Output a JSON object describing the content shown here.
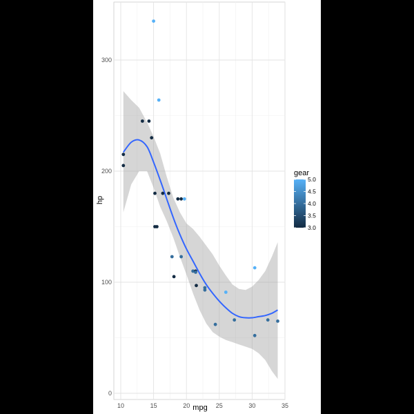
{
  "chart_data": {
    "type": "scatter",
    "title": "",
    "xlabel": "mpg",
    "ylabel": "hp",
    "xlim": [
      10.4,
      33.9
    ],
    "ylim": [
      0,
      340
    ],
    "x_ticks": [
      10,
      15,
      20,
      25,
      30,
      35
    ],
    "y_ticks": [
      0,
      100,
      200,
      300
    ],
    "grid": true,
    "legend": {
      "title": "gear",
      "placement": "right",
      "type": "colorbar",
      "range": [
        3,
        5
      ],
      "ticks": [
        "3.0",
        "3.5",
        "4.0",
        "4.5",
        "5.0"
      ],
      "colors": [
        "#132B43",
        "#56B1F7"
      ]
    },
    "points": [
      {
        "x": 21.0,
        "y": 110,
        "gear": 4
      },
      {
        "x": 21.0,
        "y": 110,
        "gear": 4
      },
      {
        "x": 22.8,
        "y": 93,
        "gear": 4
      },
      {
        "x": 21.4,
        "y": 110,
        "gear": 3
      },
      {
        "x": 18.7,
        "y": 175,
        "gear": 3
      },
      {
        "x": 18.1,
        "y": 105,
        "gear": 3
      },
      {
        "x": 14.3,
        "y": 245,
        "gear": 3
      },
      {
        "x": 24.4,
        "y": 62,
        "gear": 4
      },
      {
        "x": 22.8,
        "y": 95,
        "gear": 4
      },
      {
        "x": 19.2,
        "y": 123,
        "gear": 4
      },
      {
        "x": 17.8,
        "y": 123,
        "gear": 4
      },
      {
        "x": 16.4,
        "y": 180,
        "gear": 3
      },
      {
        "x": 17.3,
        "y": 180,
        "gear": 3
      },
      {
        "x": 15.2,
        "y": 180,
        "gear": 3
      },
      {
        "x": 10.4,
        "y": 205,
        "gear": 3
      },
      {
        "x": 10.4,
        "y": 215,
        "gear": 3
      },
      {
        "x": 14.7,
        "y": 230,
        "gear": 3
      },
      {
        "x": 32.4,
        "y": 66,
        "gear": 4
      },
      {
        "x": 30.4,
        "y": 52,
        "gear": 4
      },
      {
        "x": 33.9,
        "y": 65,
        "gear": 4
      },
      {
        "x": 21.5,
        "y": 97,
        "gear": 3
      },
      {
        "x": 15.5,
        "y": 150,
        "gear": 3
      },
      {
        "x": 15.2,
        "y": 150,
        "gear": 3
      },
      {
        "x": 13.3,
        "y": 245,
        "gear": 3
      },
      {
        "x": 19.2,
        "y": 175,
        "gear": 3
      },
      {
        "x": 27.3,
        "y": 66,
        "gear": 4
      },
      {
        "x": 26.0,
        "y": 91,
        "gear": 5
      },
      {
        "x": 30.4,
        "y": 113,
        "gear": 5
      },
      {
        "x": 15.8,
        "y": 264,
        "gear": 5
      },
      {
        "x": 19.7,
        "y": 175,
        "gear": 5
      },
      {
        "x": 15.0,
        "y": 335,
        "gear": 5
      },
      {
        "x": 21.4,
        "y": 109,
        "gear": 4
      }
    ],
    "smooth": {
      "color": "#3366FF",
      "band_color": "#999999",
      "x": [
        10.4,
        11.6,
        12.8,
        14.0,
        15.0,
        16.0,
        17.0,
        18.0,
        19.0,
        20.0,
        21.0,
        22.0,
        23.0,
        24.0,
        25.0,
        26.0,
        27.0,
        28.0,
        29.0,
        30.0,
        31.0,
        32.0,
        33.0,
        33.9
      ],
      "y": [
        217,
        226,
        228,
        222,
        208,
        192,
        175,
        158,
        143,
        130,
        119,
        108,
        98,
        90,
        83,
        77,
        72,
        69,
        68,
        68,
        69,
        70,
        72,
        75
      ],
      "lower": [
        163,
        188,
        200,
        200,
        185,
        168,
        155,
        140,
        123,
        107,
        90,
        75,
        63,
        55,
        51,
        48,
        46,
        44,
        42,
        40,
        36,
        30,
        20,
        13
      ],
      "upper": [
        272,
        264,
        257,
        244,
        231,
        216,
        195,
        176,
        163,
        153,
        148,
        141,
        133,
        125,
        115,
        106,
        98,
        94,
        93,
        96,
        102,
        110,
        123,
        136
      ]
    }
  }
}
